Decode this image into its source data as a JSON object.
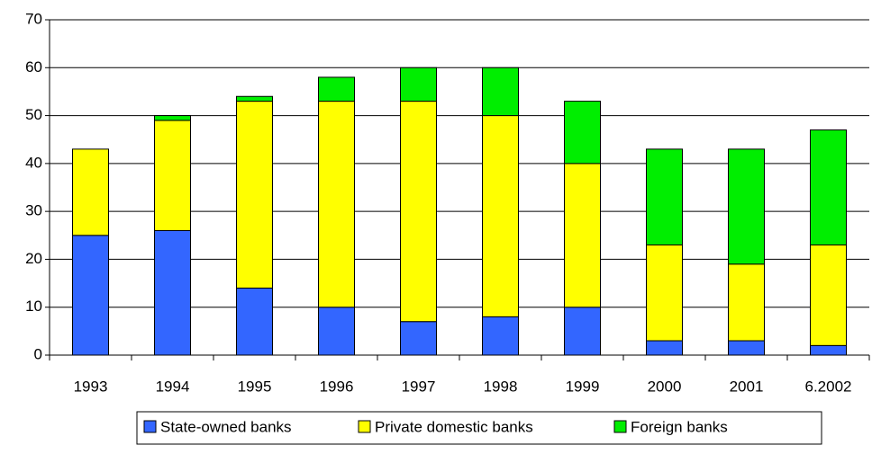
{
  "chart_data": {
    "type": "stacked_bar",
    "categories": [
      "1993",
      "1994",
      "1995",
      "1996",
      "1997",
      "1998",
      "1999",
      "2000",
      "2001",
      "6.2002"
    ],
    "series": [
      {
        "name": "State-owned banks",
        "color": "#3366ff",
        "values": [
          25,
          26,
          14,
          10,
          7,
          8,
          10,
          3,
          3,
          2
        ]
      },
      {
        "name": "Private domestic banks",
        "color": "#ffff00",
        "values": [
          18,
          23,
          39,
          43,
          46,
          42,
          30,
          20,
          16,
          21
        ]
      },
      {
        "name": "Foreign banks",
        "color": "#00ee00",
        "values": [
          0,
          1,
          1,
          5,
          7,
          10,
          13,
          20,
          24,
          24
        ]
      }
    ],
    "ylim": [
      0,
      70
    ],
    "yticks": [
      0,
      10,
      20,
      30,
      40,
      50,
      60,
      70
    ],
    "grid": true,
    "legend": "bottom"
  }
}
